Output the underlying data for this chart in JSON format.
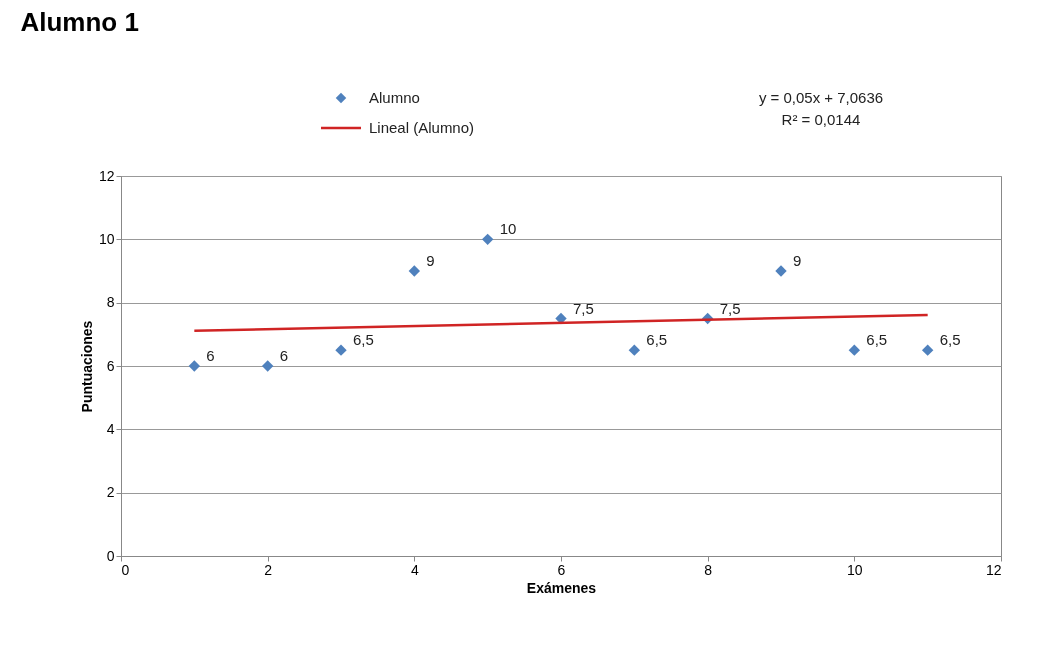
{
  "chart_data": {
    "type": "scatter",
    "title": "Alumno 1",
    "xlabel": "Exámenes",
    "ylabel": "Puntuaciones",
    "x": [
      1,
      2,
      3,
      4,
      5,
      6,
      7,
      8,
      9,
      10,
      11
    ],
    "series": [
      {
        "name": "Alumno",
        "color": "#4f81bd",
        "marker": "diamond",
        "values": [
          6,
          6,
          6.5,
          9,
          10,
          7.5,
          6.5,
          7.5,
          9,
          6.5,
          6.5
        ],
        "value_labels": [
          "6",
          "6",
          "6,5",
          "9",
          "10",
          "7,5",
          "6,5",
          "7,5",
          "9",
          "6,5",
          "6,5"
        ]
      },
      {
        "name": "Lineal (Alumno)",
        "type": "line",
        "color": "#d02424",
        "line_style": "solid",
        "x": [
          1,
          11
        ],
        "values": [
          7.11,
          7.61
        ]
      }
    ],
    "annotations": [
      "y = 0,05x + 7,0636",
      "R² = 0,0144"
    ],
    "xlim": [
      0,
      12
    ],
    "xticks": [
      0,
      2,
      4,
      6,
      8,
      10,
      12
    ],
    "ylim": [
      0,
      12
    ],
    "yticks": [
      0,
      2,
      4,
      6,
      8,
      10,
      12
    ],
    "grid": "y",
    "legend": "top"
  }
}
